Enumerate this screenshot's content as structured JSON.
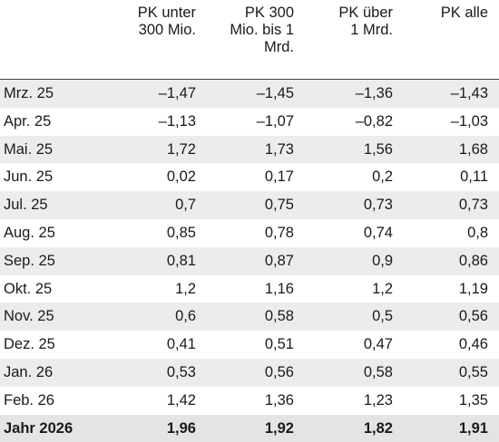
{
  "columns": [
    "PK unter\n300 Mio.",
    "PK 300\nMio. bis 1\nMrd.",
    "PK über\n1 Mrd.",
    "PK alle"
  ],
  "rows": [
    {
      "label": "Mrz. 25",
      "values": [
        "–1,47",
        "–1,45",
        "–1,36",
        "–1,43"
      ]
    },
    {
      "label": "Apr. 25",
      "values": [
        "–1,13",
        "–1,07",
        "–0,82",
        "–1,03"
      ]
    },
    {
      "label": "Mai. 25",
      "values": [
        "1,72",
        "1,73",
        "1,56",
        "1,68"
      ]
    },
    {
      "label": "Jun. 25",
      "values": [
        "0,02",
        "0,17",
        "0,2",
        "0,11"
      ]
    },
    {
      "label": "Jul. 25",
      "values": [
        "0,7",
        "0,75",
        "0,73",
        "0,73"
      ]
    },
    {
      "label": "Aug. 25",
      "values": [
        "0,85",
        "0,78",
        "0,74",
        "0,8"
      ]
    },
    {
      "label": "Sep. 25",
      "values": [
        "0,81",
        "0,87",
        "0,9",
        "0,86"
      ]
    },
    {
      "label": "Okt. 25",
      "values": [
        "1,2",
        "1,16",
        "1,2",
        "1,19"
      ]
    },
    {
      "label": "Nov. 25",
      "values": [
        "0,6",
        "0,58",
        "0,5",
        "0,56"
      ]
    },
    {
      "label": "Dez. 25",
      "values": [
        "0,41",
        "0,51",
        "0,47",
        "0,46"
      ]
    },
    {
      "label": "Jan. 26",
      "values": [
        "0,53",
        "0,56",
        "0,58",
        "0,55"
      ]
    },
    {
      "label": "Feb. 26",
      "values": [
        "1,42",
        "1,36",
        "1,23",
        "1,35"
      ]
    }
  ],
  "total": {
    "label": "Jahr 2026",
    "values": [
      "1,96",
      "1,92",
      "1,82",
      "1,91"
    ]
  },
  "colors": {
    "row_shade": "#ececec",
    "total_shade": "#e4e4e4",
    "rule": "#444444"
  }
}
